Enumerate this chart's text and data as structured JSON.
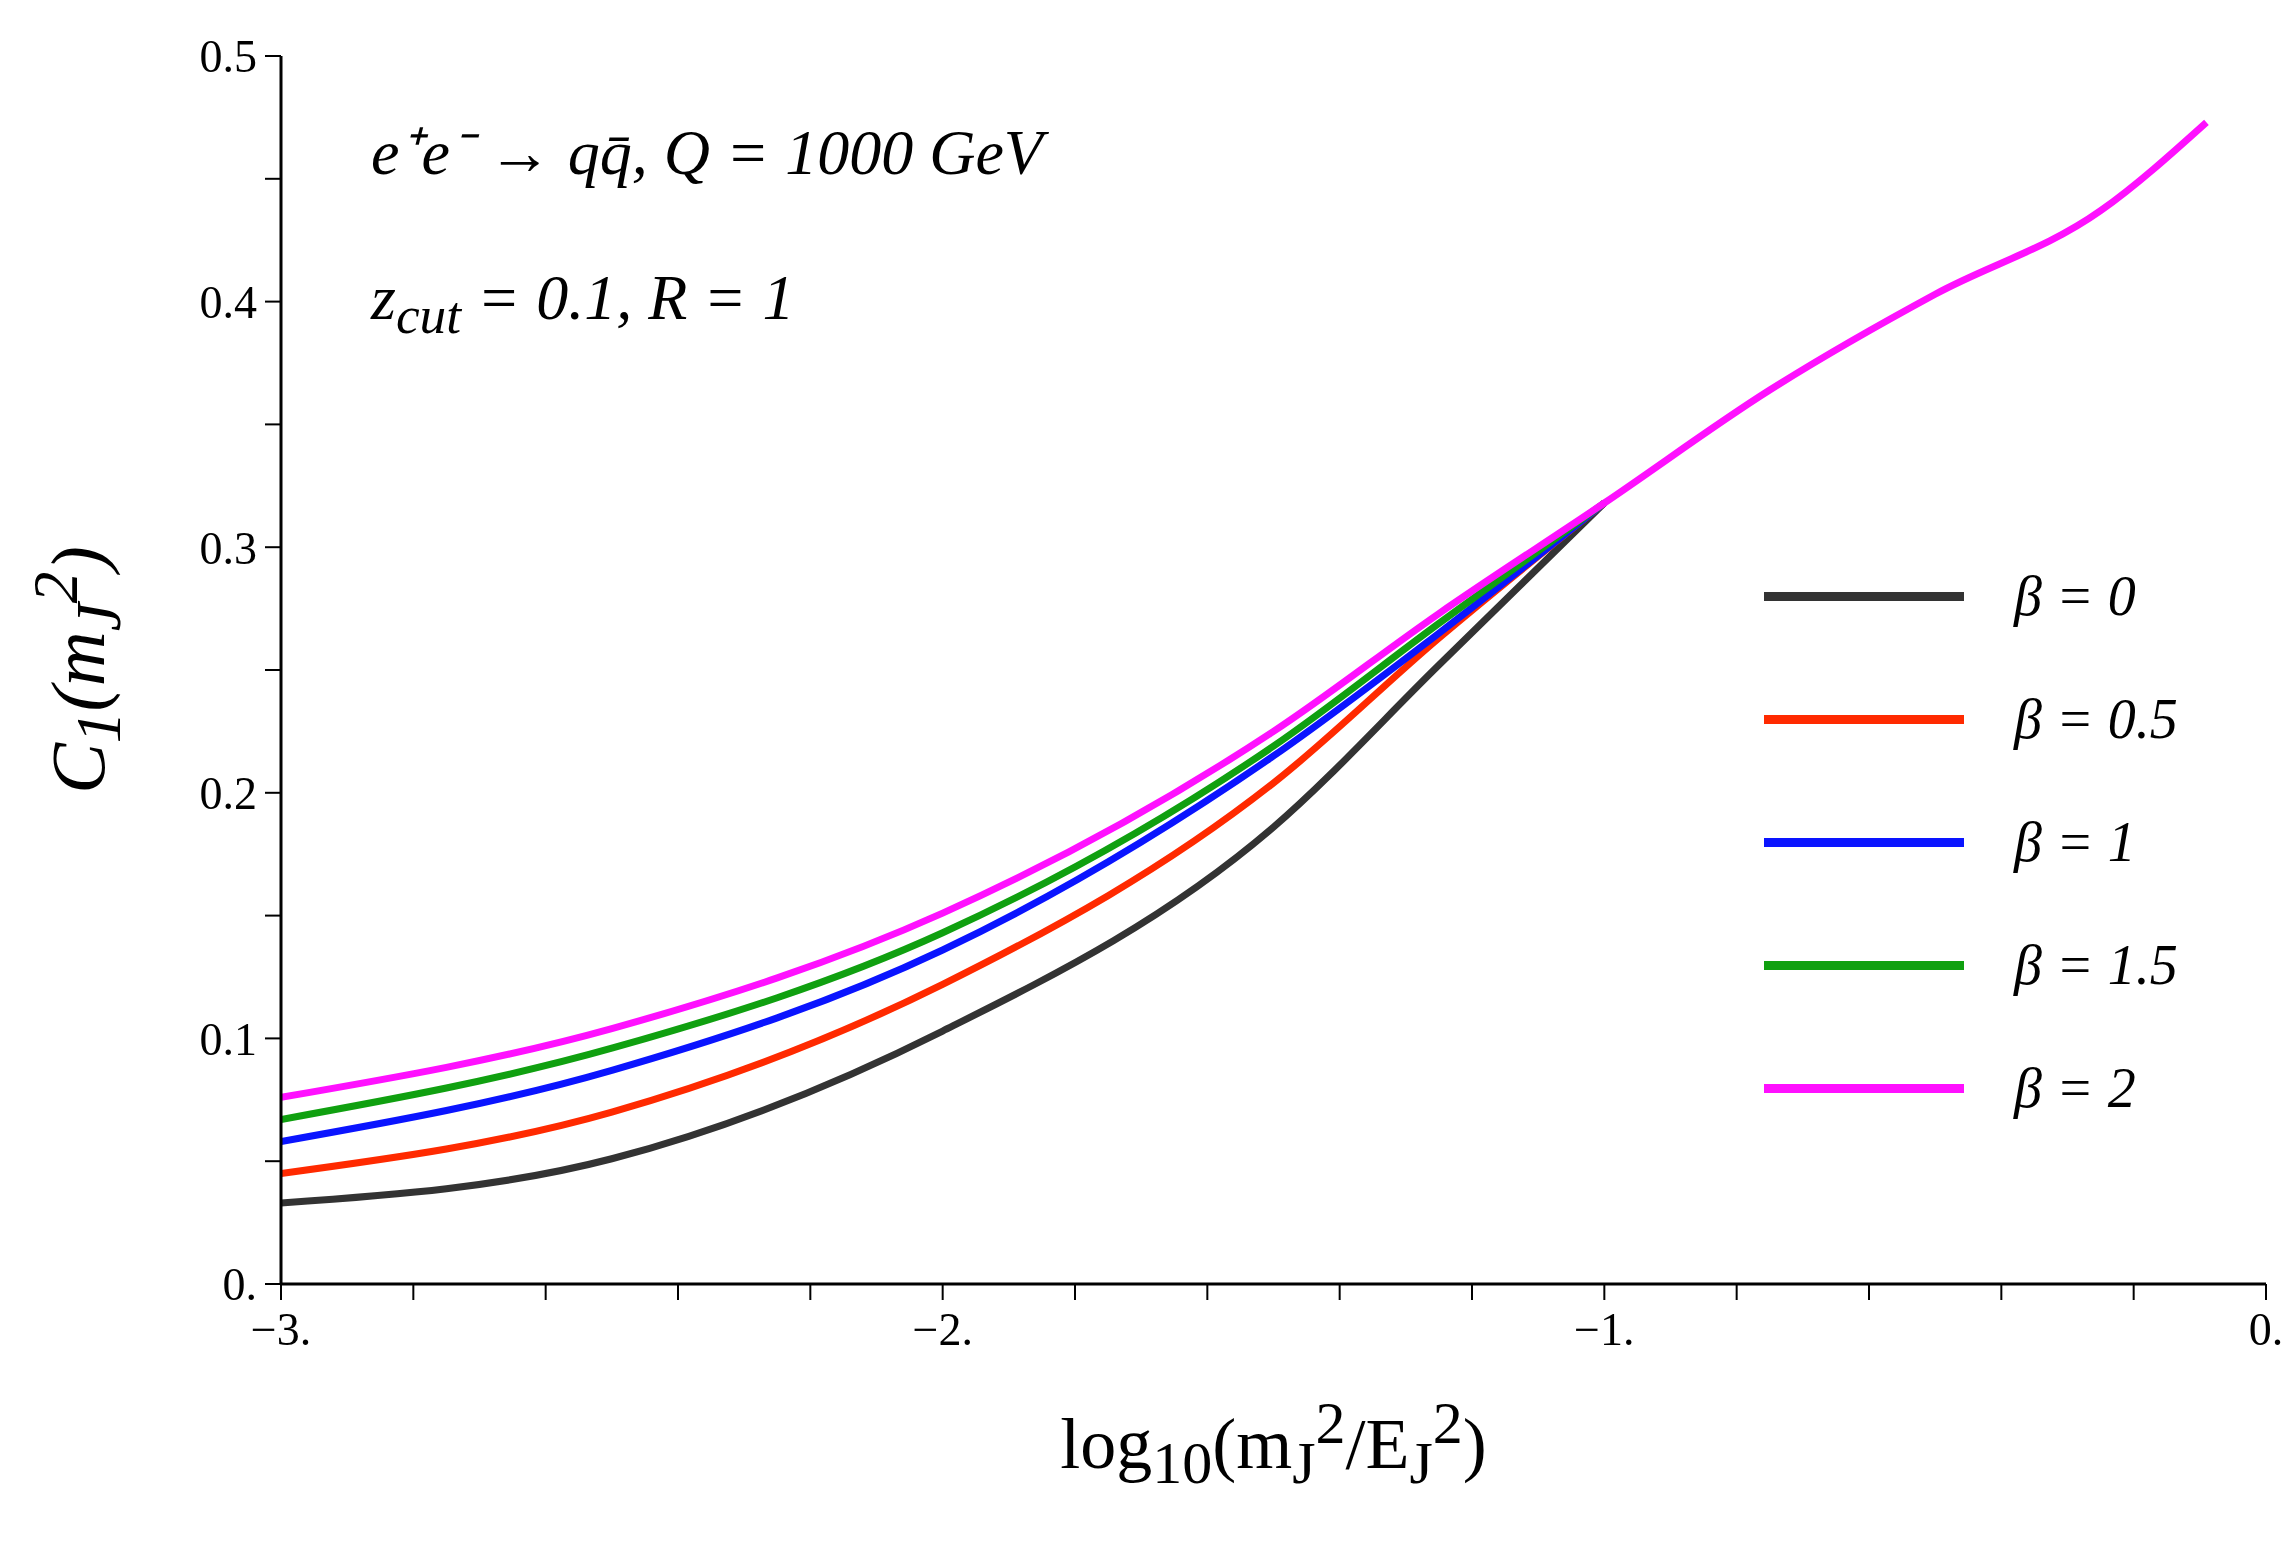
{
  "chart_data": {
    "type": "line",
    "xlabel": "log$_{10}$(m$_{J}$$^{2}$/E$_{J}$$^{2}$)",
    "ylabel": "C$_{1}$(m$_{J}$$^{2}$)",
    "annotations": [
      "e⁺e⁻ → qq̄,  Q = 1000 GeV",
      "z$_{cut}$ = 0.1,  R = 1"
    ],
    "x": [
      -3,
      -2.5,
      -2,
      -1.5,
      -1.25,
      -1,
      -0.75,
      -0.5,
      -0.25,
      -0.09
    ],
    "series": [
      {
        "name": "β = 0",
        "color": "#333333",
        "values": [
          0.033,
          0.051,
          0.103,
          0.186,
          0.252,
          0.318,
          null,
          null,
          null,
          null
        ]
      },
      {
        "name": "β = 0.5",
        "color": "#ff2a00",
        "values": [
          0.045,
          0.07,
          0.122,
          0.204,
          0.263,
          0.318,
          null,
          null,
          null,
          null
        ]
      },
      {
        "name": "β = 1",
        "color": "#0a14ff",
        "values": [
          0.058,
          0.087,
          0.136,
          0.215,
          0.265,
          0.318,
          null,
          null,
          null,
          null
        ]
      },
      {
        "name": "β = 1.5",
        "color": "#10a010",
        "values": [
          0.067,
          0.096,
          0.143,
          0.219,
          0.269,
          0.318,
          null,
          null,
          null,
          null
        ]
      },
      {
        "name": "β = 2",
        "color": "#ff10ff",
        "values": [
          0.076,
          0.104,
          0.151,
          0.225,
          0.273,
          0.318,
          0.364,
          0.403,
          0.437,
          0.473
        ]
      }
    ],
    "xlim": [
      -3,
      0
    ],
    "xticks": [
      {
        "value": -3,
        "label": "−3."
      },
      {
        "value": -2.8,
        "label": null
      },
      {
        "value": -2.6,
        "label": null
      },
      {
        "value": -2.4,
        "label": null
      },
      {
        "value": -2.2,
        "label": null
      },
      {
        "value": -2,
        "label": "−2."
      },
      {
        "value": -1.8,
        "label": null
      },
      {
        "value": -1.6,
        "label": null
      },
      {
        "value": -1.4,
        "label": null
      },
      {
        "value": -1.2,
        "label": null
      },
      {
        "value": -1,
        "label": "−1."
      },
      {
        "value": -0.8,
        "label": null
      },
      {
        "value": -0.6,
        "label": null
      },
      {
        "value": -0.4,
        "label": null
      },
      {
        "value": -0.2,
        "label": null
      },
      {
        "value": 0,
        "label": "0."
      }
    ],
    "ylim": [
      0,
      0.5
    ],
    "yticks": [
      {
        "value": 0,
        "label": "0."
      },
      {
        "value": 0.05,
        "label": null
      },
      0.1,
      {
        "value": 0.15,
        "label": null
      },
      0.2,
      {
        "value": 0.25,
        "label": null
      },
      0.3,
      {
        "value": 0.35,
        "label": null
      },
      0.4,
      {
        "value": 0.45,
        "label": null
      },
      0.5
    ],
    "legend": "right",
    "grid": false,
    "line_style": "solid"
  }
}
